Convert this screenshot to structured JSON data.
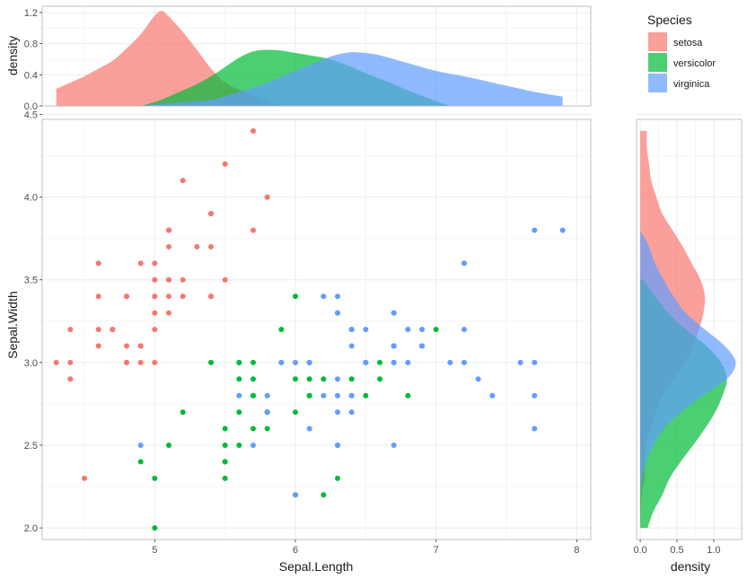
{
  "chart_data": {
    "type": "scatter",
    "xlabel": "Sepal.Length",
    "ylabel": "Sepal.Width",
    "xlim": [
      4.2,
      8.1
    ],
    "ylim": [
      1.93,
      4.47
    ],
    "x_ticks": [
      "5",
      "6",
      "7",
      "8"
    ],
    "y_ticks": [
      "2.0",
      "2.5",
      "3.0",
      "3.5",
      "4.0",
      "4.5"
    ],
    "density_label": "density",
    "top_density_ylim": [
      0,
      1.28
    ],
    "top_density_ticks": [
      "0.0",
      "0.4",
      "0.8",
      "1.2"
    ],
    "right_density_xlim": [
      -0.05,
      1.38
    ],
    "right_density_ticks": [
      "0.0",
      "0.5",
      "1.0"
    ],
    "legend": {
      "title": "Species",
      "position": "right"
    },
    "series": [
      {
        "name": "setosa",
        "color": "#F8766D",
        "points": [
          [
            5.1,
            3.5
          ],
          [
            4.9,
            3.0
          ],
          [
            4.7,
            3.2
          ],
          [
            4.6,
            3.1
          ],
          [
            5.0,
            3.6
          ],
          [
            5.4,
            3.9
          ],
          [
            4.6,
            3.4
          ],
          [
            5.0,
            3.4
          ],
          [
            4.4,
            2.9
          ],
          [
            4.9,
            3.1
          ],
          [
            5.4,
            3.7
          ],
          [
            4.8,
            3.4
          ],
          [
            4.8,
            3.0
          ],
          [
            4.3,
            3.0
          ],
          [
            5.8,
            4.0
          ],
          [
            5.7,
            4.4
          ],
          [
            5.4,
            3.9
          ],
          [
            5.1,
            3.5
          ],
          [
            5.7,
            3.8
          ],
          [
            5.1,
            3.8
          ],
          [
            5.4,
            3.4
          ],
          [
            5.1,
            3.7
          ],
          [
            4.6,
            3.6
          ],
          [
            5.1,
            3.3
          ],
          [
            4.8,
            3.4
          ],
          [
            5.0,
            3.0
          ],
          [
            5.0,
            3.4
          ],
          [
            5.2,
            3.5
          ],
          [
            5.2,
            3.4
          ],
          [
            4.7,
            3.2
          ],
          [
            4.8,
            3.1
          ],
          [
            5.4,
            3.4
          ],
          [
            5.2,
            4.1
          ],
          [
            5.5,
            4.2
          ],
          [
            4.9,
            3.1
          ],
          [
            5.0,
            3.2
          ],
          [
            5.5,
            3.5
          ],
          [
            4.9,
            3.6
          ],
          [
            4.4,
            3.0
          ],
          [
            5.1,
            3.4
          ],
          [
            5.0,
            3.5
          ],
          [
            4.5,
            2.3
          ],
          [
            4.4,
            3.2
          ],
          [
            5.0,
            3.5
          ],
          [
            5.1,
            3.8
          ],
          [
            4.8,
            3.0
          ],
          [
            5.1,
            3.8
          ],
          [
            4.6,
            3.2
          ],
          [
            5.3,
            3.7
          ],
          [
            5.0,
            3.3
          ]
        ],
        "density_x": [
          [
            4.3,
            0.22
          ],
          [
            4.4,
            0.3
          ],
          [
            4.5,
            0.38
          ],
          [
            4.6,
            0.48
          ],
          [
            4.7,
            0.58
          ],
          [
            4.8,
            0.74
          ],
          [
            4.9,
            0.92
          ],
          [
            5.0,
            1.16
          ],
          [
            5.05,
            1.22
          ],
          [
            5.1,
            1.15
          ],
          [
            5.2,
            0.95
          ],
          [
            5.3,
            0.72
          ],
          [
            5.4,
            0.48
          ],
          [
            5.5,
            0.3
          ],
          [
            5.6,
            0.21
          ],
          [
            5.7,
            0.14
          ],
          [
            5.8,
            0.06
          ],
          [
            5.9,
            0.0
          ]
        ],
        "density_y": [
          [
            2.0,
            0.0
          ],
          [
            2.2,
            0.02
          ],
          [
            2.3,
            0.06
          ],
          [
            2.4,
            0.06
          ],
          [
            2.5,
            0.08
          ],
          [
            2.6,
            0.14
          ],
          [
            2.7,
            0.22
          ],
          [
            2.8,
            0.3
          ],
          [
            2.9,
            0.45
          ],
          [
            3.0,
            0.62
          ],
          [
            3.1,
            0.72
          ],
          [
            3.2,
            0.8
          ],
          [
            3.3,
            0.86
          ],
          [
            3.4,
            0.88
          ],
          [
            3.5,
            0.82
          ],
          [
            3.6,
            0.7
          ],
          [
            3.7,
            0.58
          ],
          [
            3.8,
            0.44
          ],
          [
            3.9,
            0.3
          ],
          [
            4.0,
            0.22
          ],
          [
            4.1,
            0.15
          ],
          [
            4.2,
            0.12
          ],
          [
            4.3,
            0.09
          ],
          [
            4.4,
            0.09
          ]
        ]
      },
      {
        "name": "versicolor",
        "color": "#00BA38",
        "points": [
          [
            7.0,
            3.2
          ],
          [
            6.4,
            3.2
          ],
          [
            6.9,
            3.1
          ],
          [
            5.5,
            2.3
          ],
          [
            6.5,
            2.8
          ],
          [
            5.7,
            2.8
          ],
          [
            6.3,
            3.3
          ],
          [
            4.9,
            2.4
          ],
          [
            6.6,
            2.9
          ],
          [
            5.2,
            2.7
          ],
          [
            5.0,
            2.0
          ],
          [
            5.9,
            3.0
          ],
          [
            6.0,
            2.2
          ],
          [
            6.1,
            2.9
          ],
          [
            5.6,
            2.9
          ],
          [
            6.7,
            3.1
          ],
          [
            5.6,
            3.0
          ],
          [
            5.8,
            2.7
          ],
          [
            6.2,
            2.2
          ],
          [
            5.6,
            2.5
          ],
          [
            5.9,
            3.2
          ],
          [
            6.1,
            2.8
          ],
          [
            6.3,
            2.5
          ],
          [
            6.1,
            2.8
          ],
          [
            6.4,
            2.9
          ],
          [
            6.6,
            3.0
          ],
          [
            6.8,
            2.8
          ],
          [
            6.7,
            3.0
          ],
          [
            6.0,
            2.9
          ],
          [
            5.7,
            2.6
          ],
          [
            5.5,
            2.4
          ],
          [
            5.5,
            2.4
          ],
          [
            5.8,
            2.7
          ],
          [
            6.0,
            2.7
          ],
          [
            5.4,
            3.0
          ],
          [
            6.0,
            3.4
          ],
          [
            6.7,
            3.1
          ],
          [
            6.3,
            2.3
          ],
          [
            5.6,
            3.0
          ],
          [
            5.5,
            2.5
          ],
          [
            5.5,
            2.6
          ],
          [
            6.1,
            3.0
          ],
          [
            5.8,
            2.6
          ],
          [
            5.0,
            2.3
          ],
          [
            5.6,
            2.7
          ],
          [
            5.7,
            3.0
          ],
          [
            5.7,
            2.9
          ],
          [
            6.2,
            2.9
          ],
          [
            5.1,
            2.5
          ],
          [
            5.7,
            2.8
          ]
        ],
        "density_x": [
          [
            4.9,
            0.0
          ],
          [
            5.0,
            0.05
          ],
          [
            5.1,
            0.12
          ],
          [
            5.2,
            0.2
          ],
          [
            5.3,
            0.28
          ],
          [
            5.4,
            0.38
          ],
          [
            5.5,
            0.5
          ],
          [
            5.6,
            0.62
          ],
          [
            5.7,
            0.7
          ],
          [
            5.8,
            0.72
          ],
          [
            5.9,
            0.71
          ],
          [
            6.0,
            0.68
          ],
          [
            6.1,
            0.65
          ],
          [
            6.2,
            0.62
          ],
          [
            6.3,
            0.57
          ],
          [
            6.4,
            0.5
          ],
          [
            6.5,
            0.42
          ],
          [
            6.6,
            0.35
          ],
          [
            6.7,
            0.28
          ],
          [
            6.8,
            0.2
          ],
          [
            6.9,
            0.13
          ],
          [
            7.0,
            0.06
          ],
          [
            7.1,
            0.0
          ]
        ],
        "density_y": [
          [
            2.0,
            0.1
          ],
          [
            2.1,
            0.18
          ],
          [
            2.2,
            0.3
          ],
          [
            2.3,
            0.4
          ],
          [
            2.4,
            0.55
          ],
          [
            2.5,
            0.72
          ],
          [
            2.6,
            0.88
          ],
          [
            2.7,
            1.02
          ],
          [
            2.8,
            1.12
          ],
          [
            2.9,
            1.18
          ],
          [
            3.0,
            1.1
          ],
          [
            3.1,
            0.9
          ],
          [
            3.2,
            0.62
          ],
          [
            3.3,
            0.38
          ],
          [
            3.4,
            0.2
          ],
          [
            3.5,
            0.05
          ]
        ]
      },
      {
        "name": "virginica",
        "color": "#619CFF",
        "points": [
          [
            6.3,
            3.3
          ],
          [
            5.8,
            2.7
          ],
          [
            7.1,
            3.0
          ],
          [
            6.3,
            2.9
          ],
          [
            6.5,
            3.0
          ],
          [
            7.6,
            3.0
          ],
          [
            4.9,
            2.5
          ],
          [
            7.3,
            2.9
          ],
          [
            6.7,
            2.5
          ],
          [
            7.2,
            3.6
          ],
          [
            6.5,
            3.2
          ],
          [
            6.4,
            2.7
          ],
          [
            6.8,
            3.0
          ],
          [
            5.7,
            2.5
          ],
          [
            5.8,
            2.8
          ],
          [
            6.4,
            3.2
          ],
          [
            6.5,
            3.0
          ],
          [
            7.7,
            3.8
          ],
          [
            7.7,
            2.6
          ],
          [
            6.0,
            2.2
          ],
          [
            6.9,
            3.2
          ],
          [
            5.6,
            2.8
          ],
          [
            7.7,
            2.8
          ],
          [
            6.3,
            2.7
          ],
          [
            6.7,
            3.3
          ],
          [
            7.2,
            3.2
          ],
          [
            6.2,
            2.8
          ],
          [
            6.1,
            3.0
          ],
          [
            6.4,
            2.8
          ],
          [
            7.2,
            3.0
          ],
          [
            7.4,
            2.8
          ],
          [
            7.9,
            3.8
          ],
          [
            6.4,
            2.8
          ],
          [
            6.3,
            2.8
          ],
          [
            6.1,
            2.6
          ],
          [
            7.7,
            3.0
          ],
          [
            6.3,
            3.4
          ],
          [
            6.4,
            3.1
          ],
          [
            6.0,
            3.0
          ],
          [
            6.9,
            3.1
          ],
          [
            6.7,
            3.1
          ],
          [
            6.9,
            3.1
          ],
          [
            5.8,
            2.7
          ],
          [
            6.8,
            3.2
          ],
          [
            6.7,
            3.3
          ],
          [
            6.7,
            3.0
          ],
          [
            6.3,
            2.5
          ],
          [
            6.5,
            3.0
          ],
          [
            6.2,
            3.4
          ],
          [
            5.9,
            3.0
          ]
        ],
        "density_x": [
          [
            4.9,
            0.0
          ],
          [
            5.0,
            0.02
          ],
          [
            5.2,
            0.05
          ],
          [
            5.4,
            0.08
          ],
          [
            5.6,
            0.18
          ],
          [
            5.8,
            0.3
          ],
          [
            6.0,
            0.45
          ],
          [
            6.2,
            0.6
          ],
          [
            6.3,
            0.66
          ],
          [
            6.4,
            0.69
          ],
          [
            6.5,
            0.68
          ],
          [
            6.6,
            0.65
          ],
          [
            6.8,
            0.55
          ],
          [
            7.0,
            0.45
          ],
          [
            7.2,
            0.38
          ],
          [
            7.4,
            0.3
          ],
          [
            7.6,
            0.22
          ],
          [
            7.7,
            0.18
          ],
          [
            7.9,
            0.12
          ]
        ],
        "density_y": [
          [
            2.2,
            0.0
          ],
          [
            2.3,
            0.03
          ],
          [
            2.4,
            0.08
          ],
          [
            2.5,
            0.18
          ],
          [
            2.6,
            0.32
          ],
          [
            2.7,
            0.55
          ],
          [
            2.8,
            0.85
          ],
          [
            2.9,
            1.18
          ],
          [
            3.0,
            1.3
          ],
          [
            3.1,
            1.15
          ],
          [
            3.2,
            0.88
          ],
          [
            3.3,
            0.62
          ],
          [
            3.4,
            0.45
          ],
          [
            3.5,
            0.32
          ],
          [
            3.6,
            0.2
          ],
          [
            3.7,
            0.12
          ],
          [
            3.8,
            0.0
          ]
        ]
      }
    ]
  }
}
